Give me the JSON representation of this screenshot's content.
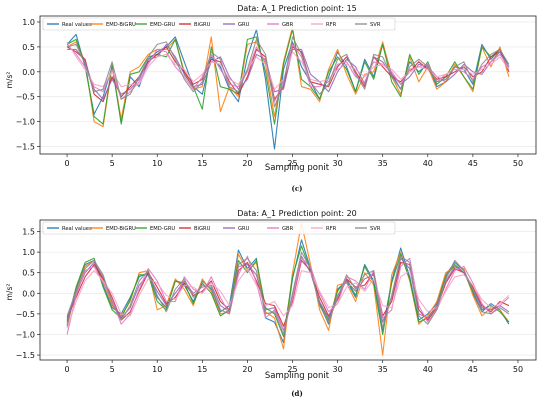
{
  "chart_data": [
    {
      "type": "line",
      "title": "Data: A_1 Prediction point: 15",
      "xlabel": "Sampling ponit",
      "ylabel": "m/s²",
      "caption": "(c)",
      "xlim": [
        -3,
        52
      ],
      "ylim": [
        -1.65,
        1.12
      ],
      "xticks": [
        0,
        5,
        10,
        15,
        20,
        25,
        30,
        35,
        40,
        45,
        50
      ],
      "yticks": [
        -1.5,
        -1.0,
        -0.5,
        0.0,
        0.5,
        1.0
      ],
      "legend_position": "top",
      "series": [
        {
          "name": "Real values",
          "color": "#1f77b4",
          "values": [
            0.55,
            0.75,
            0.1,
            -0.85,
            -0.5,
            0.1,
            -1.0,
            -0.1,
            -0.3,
            0.25,
            0.4,
            0.5,
            0.7,
            0.2,
            -0.3,
            -0.45,
            0.3,
            0.1,
            -0.35,
            -0.6,
            0.3,
            0.85,
            -0.15,
            -1.55,
            0.05,
            0.6,
            0.1,
            -0.2,
            -0.55,
            -0.1,
            0.4,
            0.1,
            -0.4,
            0.25,
            -0.1,
            0.55,
            -0.05,
            -0.35,
            0.2,
            0.0,
            0.15,
            -0.3,
            -0.2,
            0.1,
            0.05,
            -0.25,
            0.55,
            0.25,
            0.45,
            0.1
          ]
        },
        {
          "name": "EMD-BiGRU",
          "color": "#ff7f0e",
          "values": [
            0.5,
            0.6,
            0.2,
            -1.0,
            -1.1,
            0.1,
            -0.95,
            0.0,
            0.1,
            0.35,
            0.45,
            0.45,
            0.65,
            0.0,
            -0.35,
            -0.3,
            0.7,
            -0.8,
            -0.3,
            -0.5,
            0.55,
            0.6,
            0.15,
            -0.9,
            0.2,
            0.9,
            -0.3,
            -0.35,
            -0.6,
            0.05,
            0.45,
            -0.05,
            -0.45,
            -0.05,
            0.0,
            0.6,
            -0.1,
            -0.45,
            0.3,
            -0.2,
            0.1,
            -0.35,
            -0.2,
            0.15,
            -0.1,
            -0.4,
            0.5,
            0.1,
            0.5,
            -0.1
          ]
        },
        {
          "name": "EMD-GRU",
          "color": "#2ca02c",
          "values": [
            0.55,
            0.65,
            0.15,
            -0.9,
            -1.05,
            0.15,
            -1.05,
            -0.05,
            0.0,
            0.3,
            0.35,
            0.3,
            0.65,
            -0.05,
            -0.3,
            -0.75,
            0.5,
            -0.3,
            -0.35,
            -0.45,
            0.65,
            0.7,
            0.0,
            -1.05,
            0.15,
            0.85,
            -0.15,
            -0.3,
            -0.55,
            0.0,
            0.3,
            0.05,
            -0.4,
            0.2,
            -0.15,
            0.55,
            -0.2,
            -0.5,
            0.35,
            -0.05,
            0.2,
            -0.25,
            -0.1,
            0.2,
            -0.1,
            -0.35,
            0.5,
            0.3,
            0.4,
            0.1
          ]
        },
        {
          "name": "BiGRU",
          "color": "#d62728",
          "values": [
            0.5,
            0.4,
            0.25,
            -0.45,
            -0.6,
            -0.1,
            -0.5,
            -0.3,
            -0.1,
            0.2,
            0.35,
            0.5,
            0.2,
            0.0,
            -0.25,
            -0.15,
            0.25,
            0.2,
            -0.2,
            -0.45,
            -0.1,
            0.45,
            0.3,
            -0.55,
            -0.3,
            0.5,
            0.4,
            -0.2,
            -0.25,
            -0.3,
            0.1,
            0.3,
            0.0,
            -0.3,
            0.3,
            0.1,
            -0.1,
            -0.2,
            0.0,
            0.2,
            0.05,
            -0.15,
            -0.1,
            0.0,
            0.1,
            -0.1,
            0.0,
            0.3,
            0.45,
            0.0
          ]
        },
        {
          "name": "GRU",
          "color": "#9467bd",
          "values": [
            0.45,
            0.45,
            0.2,
            -0.35,
            -0.55,
            -0.15,
            -0.45,
            -0.35,
            -0.15,
            0.25,
            0.3,
            0.55,
            0.3,
            -0.05,
            -0.3,
            -0.25,
            0.2,
            0.3,
            -0.1,
            -0.35,
            -0.15,
            0.35,
            0.25,
            -0.4,
            -0.35,
            0.45,
            0.45,
            -0.05,
            -0.2,
            -0.4,
            0.0,
            0.25,
            0.1,
            -0.25,
            0.3,
            0.2,
            -0.05,
            -0.25,
            -0.1,
            0.15,
            0.1,
            -0.1,
            -0.2,
            -0.05,
            0.15,
            0.0,
            -0.05,
            0.2,
            0.4,
            0.05
          ]
        },
        {
          "name": "GBR",
          "color": "#e377c2",
          "values": [
            0.55,
            0.35,
            0.1,
            -0.3,
            -0.4,
            0.05,
            -0.55,
            -0.4,
            -0.2,
            0.15,
            0.45,
            0.4,
            0.1,
            -0.1,
            -0.35,
            -0.1,
            0.35,
            0.05,
            -0.25,
            -0.3,
            0.0,
            0.5,
            0.2,
            -0.6,
            -0.2,
            0.55,
            0.3,
            -0.3,
            -0.3,
            -0.2,
            0.15,
            0.2,
            -0.1,
            -0.2,
            0.2,
            0.15,
            0.0,
            -0.25,
            0.05,
            0.1,
            0.15,
            -0.2,
            -0.05,
            0.05,
            0.0,
            -0.15,
            0.1,
            0.2,
            0.35,
            0.1
          ]
        },
        {
          "name": "RFR",
          "color": "#f4a3c8",
          "values": [
            0.6,
            0.3,
            0.05,
            -0.25,
            -0.3,
            0.0,
            -0.3,
            -0.25,
            -0.25,
            0.1,
            0.3,
            0.35,
            0.15,
            0.05,
            -0.2,
            -0.05,
            0.2,
            0.15,
            -0.15,
            -0.25,
            0.05,
            0.3,
            0.15,
            -0.35,
            -0.15,
            0.4,
            0.2,
            -0.15,
            -0.2,
            -0.15,
            0.05,
            0.15,
            0.05,
            -0.1,
            0.1,
            0.15,
            0.05,
            -0.15,
            0.0,
            0.1,
            0.05,
            -0.1,
            -0.05,
            0.05,
            0.05,
            -0.05,
            0.05,
            0.15,
            0.3,
            0.05
          ]
        },
        {
          "name": "SVR",
          "color": "#8c8c8c",
          "values": [
            0.5,
            0.55,
            0.15,
            -0.4,
            -0.35,
            0.2,
            -0.55,
            -0.45,
            -0.1,
            0.3,
            0.55,
            0.6,
            0.25,
            -0.15,
            -0.4,
            -0.2,
            0.4,
            0.25,
            -0.3,
            -0.4,
            0.05,
            0.65,
            0.35,
            -0.7,
            -0.25,
            0.7,
            0.35,
            -0.2,
            -0.45,
            -0.25,
            0.25,
            0.35,
            -0.05,
            -0.35,
            0.35,
            0.3,
            -0.1,
            -0.35,
            0.1,
            0.25,
            0.1,
            -0.2,
            -0.15,
            0.1,
            0.2,
            -0.2,
            0.15,
            0.35,
            0.45,
            0.15
          ]
        }
      ]
    },
    {
      "type": "line",
      "title": "Data: A_1 Prediction point: 20",
      "xlabel": "Sampling ponit",
      "ylabel": "m/s²",
      "caption": "(d)",
      "xlim": [
        -3,
        52
      ],
      "ylim": [
        -1.62,
        1.78
      ],
      "xticks": [
        0,
        5,
        10,
        15,
        20,
        25,
        30,
        35,
        40,
        45,
        50
      ],
      "yticks": [
        -1.5,
        -1.0,
        -0.5,
        0.0,
        0.5,
        1.0,
        1.5
      ],
      "legend_position": "top",
      "series": [
        {
          "name": "Real values",
          "color": "#1f77b4",
          "values": [
            -0.8,
            0.1,
            0.7,
            0.8,
            0.2,
            -0.35,
            -0.5,
            -0.1,
            0.4,
            0.5,
            -0.1,
            -0.35,
            0.3,
            0.2,
            -0.2,
            0.3,
            0.1,
            -0.45,
            -0.3,
            1.05,
            0.6,
            0.85,
            -0.6,
            -0.7,
            -1.2,
            0.35,
            1.3,
            0.6,
            -0.25,
            -0.75,
            0.1,
            0.3,
            -0.1,
            0.7,
            0.3,
            -0.9,
            0.3,
            1.1,
            0.4,
            -0.65,
            -0.5,
            -0.25,
            0.45,
            0.75,
            0.55,
            0.0,
            -0.45,
            -0.25,
            -0.4,
            -0.75
          ]
        },
        {
          "name": "EMD-BiGRU",
          "color": "#ff7f0e",
          "values": [
            -0.75,
            0.05,
            0.65,
            0.8,
            0.3,
            -0.3,
            -0.55,
            -0.2,
            0.5,
            0.55,
            -0.4,
            -0.3,
            0.35,
            0.1,
            -0.3,
            0.35,
            0.05,
            -0.5,
            -0.45,
            0.95,
            0.55,
            0.75,
            -0.45,
            -0.6,
            -1.35,
            0.5,
            1.7,
            0.7,
            -0.4,
            -0.9,
            0.2,
            0.25,
            -0.2,
            0.5,
            0.2,
            -1.5,
            0.45,
            1.0,
            0.3,
            -0.75,
            -0.55,
            -0.2,
            0.5,
            0.65,
            0.6,
            -0.05,
            -0.55,
            -0.35,
            -0.4,
            -0.7
          ]
        },
        {
          "name": "EMD-GRU",
          "color": "#2ca02c",
          "values": [
            -0.7,
            0.15,
            0.75,
            0.85,
            0.15,
            -0.4,
            -0.6,
            -0.15,
            0.45,
            0.45,
            -0.2,
            -0.4,
            0.3,
            0.25,
            -0.25,
            0.25,
            0.0,
            -0.55,
            -0.4,
            0.8,
            0.5,
            0.8,
            -0.35,
            -0.5,
            -1.05,
            0.4,
            1.15,
            0.55,
            -0.25,
            -0.65,
            0.05,
            0.35,
            -0.05,
            0.65,
            0.25,
            -1.0,
            0.25,
            0.95,
            0.35,
            -0.7,
            -0.6,
            -0.3,
            0.4,
            0.7,
            0.5,
            0.05,
            -0.4,
            -0.3,
            -0.45,
            -0.7
          ]
        },
        {
          "name": "BiGRU",
          "color": "#d62728",
          "values": [
            -0.6,
            -0.1,
            0.4,
            0.7,
            0.35,
            -0.1,
            -0.65,
            -0.45,
            0.05,
            0.5,
            0.15,
            -0.25,
            -0.1,
            0.25,
            -0.05,
            0.05,
            0.3,
            -0.2,
            -0.4,
            0.55,
            0.75,
            0.3,
            -0.25,
            -0.3,
            -0.8,
            -0.2,
            0.8,
            0.55,
            -0.1,
            -0.55,
            -0.15,
            0.35,
            0.15,
            0.2,
            0.5,
            -0.55,
            -0.2,
            0.75,
            0.7,
            -0.4,
            -0.65,
            -0.35,
            0.25,
            0.6,
            0.5,
            0.15,
            -0.3,
            -0.45,
            -0.2,
            -0.3
          ]
        },
        {
          "name": "GRU",
          "color": "#9467bd",
          "values": [
            -0.65,
            0.0,
            0.5,
            0.75,
            0.4,
            -0.2,
            -0.6,
            -0.35,
            0.2,
            0.45,
            0.05,
            -0.3,
            0.0,
            0.3,
            0.0,
            0.15,
            0.2,
            -0.3,
            -0.45,
            0.65,
            0.7,
            0.45,
            -0.4,
            -0.35,
            -0.9,
            -0.1,
            0.9,
            0.5,
            -0.2,
            -0.6,
            -0.05,
            0.3,
            0.05,
            0.35,
            0.45,
            -0.7,
            -0.1,
            0.85,
            0.6,
            -0.5,
            -0.6,
            -0.3,
            0.3,
            0.65,
            0.5,
            0.1,
            -0.35,
            -0.4,
            -0.3,
            -0.45
          ]
        },
        {
          "name": "GBR",
          "color": "#e377c2",
          "values": [
            -1.0,
            -0.05,
            0.55,
            0.65,
            0.25,
            -0.15,
            -0.75,
            -0.5,
            0.1,
            0.6,
            0.3,
            -0.2,
            -0.2,
            0.4,
            0.1,
            0.0,
            0.4,
            -0.1,
            -0.5,
            0.45,
            0.9,
            0.25,
            -0.6,
            -0.4,
            -0.9,
            -0.15,
            0.85,
            0.65,
            0.0,
            -0.45,
            -0.25,
            0.4,
            0.3,
            0.1,
            0.55,
            -0.6,
            -0.4,
            0.65,
            0.85,
            -0.3,
            -0.7,
            -0.4,
            0.1,
            0.55,
            0.65,
            0.25,
            -0.25,
            -0.5,
            -0.3,
            -0.1
          ]
        },
        {
          "name": "RFR",
          "color": "#f4a3c8",
          "values": [
            -0.85,
            -0.2,
            0.3,
            0.55,
            0.3,
            0.0,
            -0.5,
            -0.55,
            -0.05,
            0.35,
            0.25,
            -0.05,
            -0.15,
            0.2,
            0.15,
            0.0,
            0.25,
            0.05,
            -0.3,
            0.3,
            0.6,
            0.2,
            -0.3,
            -0.2,
            -0.55,
            -0.3,
            0.55,
            0.5,
            0.05,
            -0.35,
            -0.25,
            0.15,
            0.25,
            0.05,
            0.35,
            -0.3,
            -0.35,
            0.4,
            0.55,
            -0.15,
            -0.45,
            -0.35,
            0.05,
            0.4,
            0.45,
            0.2,
            -0.15,
            -0.35,
            -0.25,
            -0.05
          ]
        },
        {
          "name": "SVR",
          "color": "#8c8c8c",
          "values": [
            -0.55,
            0.05,
            0.6,
            0.8,
            0.45,
            -0.25,
            -0.65,
            -0.3,
            0.3,
            0.55,
            -0.05,
            -0.45,
            0.1,
            0.35,
            -0.1,
            0.2,
            0.15,
            -0.4,
            -0.5,
            0.7,
            0.85,
            0.55,
            -0.5,
            -0.45,
            -1.0,
            0.0,
            1.0,
            0.6,
            -0.3,
            -0.7,
            -0.1,
            0.45,
            0.1,
            0.45,
            0.55,
            -0.85,
            -0.05,
            0.9,
            0.75,
            -0.55,
            -0.75,
            -0.4,
            0.35,
            0.8,
            0.55,
            0.1,
            -0.45,
            -0.5,
            -0.35,
            -0.5
          ]
        }
      ]
    }
  ]
}
